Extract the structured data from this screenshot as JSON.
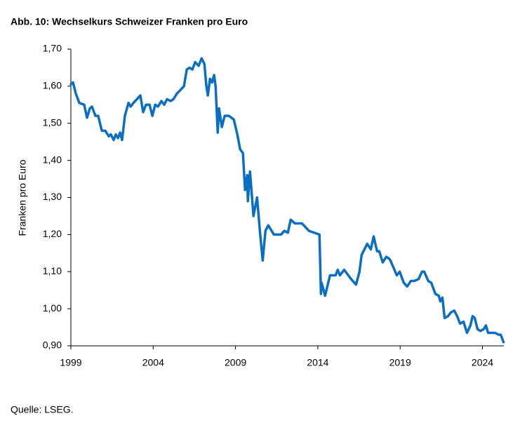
{
  "chart_data": {
    "type": "line",
    "title": "Abb. 10: Wechselkurs Schweizer Franken pro Euro",
    "ylabel": "Franken pro Euro",
    "source": "Quelle: LSEG.",
    "x": [
      1999.0,
      1999.13,
      1999.3,
      1999.51,
      1999.81,
      1999.98,
      2000.15,
      2000.28,
      2000.49,
      2000.66,
      2000.88,
      2001.09,
      2001.3,
      2001.43,
      2001.6,
      2001.73,
      2001.86,
      2001.99,
      2002.11,
      2002.28,
      2002.5,
      2002.63,
      2002.8,
      2003.01,
      2003.22,
      2003.39,
      2003.56,
      2003.78,
      2003.95,
      2004.12,
      2004.29,
      2004.5,
      2004.67,
      2004.84,
      2005.06,
      2005.23,
      2005.44,
      2005.66,
      2005.87,
      2006.04,
      2006.21,
      2006.38,
      2006.55,
      2006.76,
      2006.94,
      2007.11,
      2007.23,
      2007.32,
      2007.45,
      2007.58,
      2007.7,
      2007.79,
      2007.92,
      2008.0,
      2008.17,
      2008.34,
      2008.6,
      2008.9,
      2009.11,
      2009.28,
      2009.45,
      2009.58,
      2009.71,
      2009.75,
      2009.88,
      2010.09,
      2010.31,
      2010.48,
      2010.65,
      2010.82,
      2010.99,
      2011.33,
      2011.76,
      2011.97,
      2012.18,
      2012.35,
      2012.61,
      2013.04,
      2013.46,
      2014.1,
      2014.19,
      2014.23,
      2014.44,
      2014.74,
      2015.08,
      2015.21,
      2015.34,
      2015.6,
      2016.02,
      2016.32,
      2016.53,
      2016.66,
      2017.0,
      2017.22,
      2017.39,
      2017.6,
      2017.73,
      2017.94,
      2018.16,
      2018.33,
      2018.41,
      2018.8,
      2018.97,
      2019.22,
      2019.43,
      2019.65,
      2019.86,
      2020.12,
      2020.33,
      2020.46,
      2020.71,
      2020.89,
      2021.14,
      2021.35,
      2021.44,
      2021.57,
      2021.7,
      2021.91,
      2022.08,
      2022.29,
      2022.46,
      2022.64,
      2022.85,
      2023.06,
      2023.27,
      2023.4,
      2023.53,
      2023.7,
      2023.87,
      2024.08,
      2024.21,
      2024.34,
      2024.55,
      2024.77,
      2024.98,
      2025.11,
      2025.28
    ],
    "series": [
      {
        "name": "Franken pro Euro",
        "color": "#0a6fc2",
        "values": [
          1.605,
          1.61,
          1.58,
          1.555,
          1.55,
          1.515,
          1.54,
          1.545,
          1.52,
          1.52,
          1.48,
          1.48,
          1.465,
          1.47,
          1.455,
          1.47,
          1.46,
          1.475,
          1.455,
          1.52,
          1.555,
          1.545,
          1.555,
          1.565,
          1.575,
          1.53,
          1.55,
          1.55,
          1.52,
          1.55,
          1.545,
          1.56,
          1.55,
          1.565,
          1.56,
          1.565,
          1.58,
          1.59,
          1.6,
          1.645,
          1.65,
          1.645,
          1.665,
          1.655,
          1.675,
          1.66,
          1.6,
          1.575,
          1.62,
          1.61,
          1.63,
          1.6,
          1.475,
          1.54,
          1.49,
          1.52,
          1.52,
          1.51,
          1.47,
          1.43,
          1.42,
          1.32,
          1.36,
          1.29,
          1.37,
          1.25,
          1.3,
          1.21,
          1.13,
          1.21,
          1.225,
          1.2,
          1.2,
          1.21,
          1.205,
          1.24,
          1.23,
          1.23,
          1.21,
          1.2,
          1.04,
          1.07,
          1.035,
          1.09,
          1.09,
          1.105,
          1.09,
          1.105,
          1.08,
          1.065,
          1.1,
          1.145,
          1.175,
          1.16,
          1.195,
          1.155,
          1.155,
          1.125,
          1.14,
          1.135,
          1.13,
          1.09,
          1.1,
          1.07,
          1.06,
          1.075,
          1.075,
          1.08,
          1.1,
          1.1,
          1.075,
          1.07,
          1.04,
          1.035,
          1.02,
          1.03,
          0.975,
          0.98,
          0.99,
          0.995,
          0.98,
          0.96,
          0.965,
          0.935,
          0.955,
          0.98,
          0.975,
          0.945,
          0.94,
          0.945,
          0.955,
          0.935,
          0.935,
          0.935,
          0.93,
          0.93,
          0.91
        ]
      }
    ],
    "xlim": [
      1999,
      2025.3
    ],
    "xticks": [
      1999,
      2004,
      2009,
      2014,
      2019,
      2024
    ],
    "ylim": [
      0.9,
      1.7
    ],
    "yticks": [
      {
        "value": 0.9,
        "label": "0,90"
      },
      {
        "value": 1.0,
        "label": "1,00"
      },
      {
        "value": 1.1,
        "label": "1,10"
      },
      {
        "value": 1.2,
        "label": "1,20"
      },
      {
        "value": 1.3,
        "label": "1,30"
      },
      {
        "value": 1.4,
        "label": "1,40"
      },
      {
        "value": 1.5,
        "label": "1,50"
      },
      {
        "value": 1.6,
        "label": "1,60"
      },
      {
        "value": 1.7,
        "label": "1,70"
      }
    ],
    "grid": false
  }
}
